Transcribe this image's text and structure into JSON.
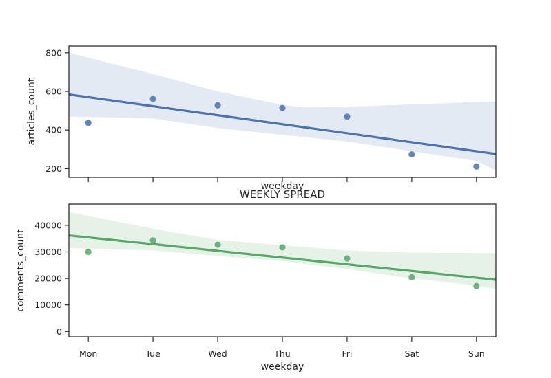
{
  "chart_data": [
    {
      "type": "scatter",
      "regression": "linear with confidence band",
      "categories": [
        "Mon",
        "Tue",
        "Wed",
        "Thu",
        "Fri",
        "Sat",
        "Sun"
      ],
      "x": [
        0,
        1,
        2,
        3,
        4,
        5,
        6
      ],
      "xlabel": "weekday",
      "ylabel": "articles_count",
      "ylim": [
        155,
        835
      ],
      "yticks": [
        200,
        400,
        600,
        800
      ],
      "x_tick_labels_shown": false,
      "color": "#4c72b0",
      "series": [
        {
          "values": [
            437,
            561,
            528,
            514,
            469,
            274,
            211
          ]
        }
      ],
      "fit_line": {
        "x": [
          -0.3,
          6.3
        ],
        "y": [
          584,
          276
        ]
      },
      "band_upper": [
        [
          -0.3,
          800
        ],
        [
          1,
          690
        ],
        [
          2,
          600
        ],
        [
          3,
          530
        ],
        [
          3.3,
          518
        ],
        [
          4,
          520
        ],
        [
          5,
          533
        ],
        [
          6.3,
          548
        ]
      ],
      "band_lower": [
        [
          -0.3,
          470
        ],
        [
          1,
          460
        ],
        [
          2,
          410
        ],
        [
          3,
          375
        ],
        [
          4,
          340
        ],
        [
          5,
          290
        ],
        [
          6,
          240
        ],
        [
          6.3,
          190
        ]
      ]
    },
    {
      "type": "scatter",
      "regression": "linear with confidence band",
      "title": "WEEKLY SPREAD",
      "categories": [
        "Mon",
        "Tue",
        "Wed",
        "Thu",
        "Fri",
        "Sat",
        "Sun"
      ],
      "x": [
        0,
        1,
        2,
        3,
        4,
        5,
        6
      ],
      "xlabel": "weekday",
      "ylabel": "comments_count",
      "ylim": [
        -2000,
        48000
      ],
      "yticks": [
        0,
        10000,
        20000,
        30000,
        40000
      ],
      "color": "#55a868",
      "series": [
        {
          "values": [
            30000,
            34300,
            32700,
            31700,
            27500,
            20400,
            17100
          ]
        }
      ],
      "fit_line": {
        "x": [
          -0.3,
          6.3
        ],
        "y": [
          36200,
          19500
        ]
      },
      "band_upper": [
        [
          -0.3,
          45000
        ],
        [
          1,
          38700
        ],
        [
          2,
          34500
        ],
        [
          3,
          32500
        ],
        [
          4,
          30500
        ],
        [
          5,
          29700
        ],
        [
          6.3,
          29500
        ]
      ],
      "band_lower": [
        [
          -0.3,
          31500
        ],
        [
          1,
          30500
        ],
        [
          2,
          28500
        ],
        [
          3,
          26500
        ],
        [
          4,
          23500
        ],
        [
          5,
          20000
        ],
        [
          6,
          17300
        ],
        [
          6.3,
          16000
        ]
      ]
    }
  ]
}
